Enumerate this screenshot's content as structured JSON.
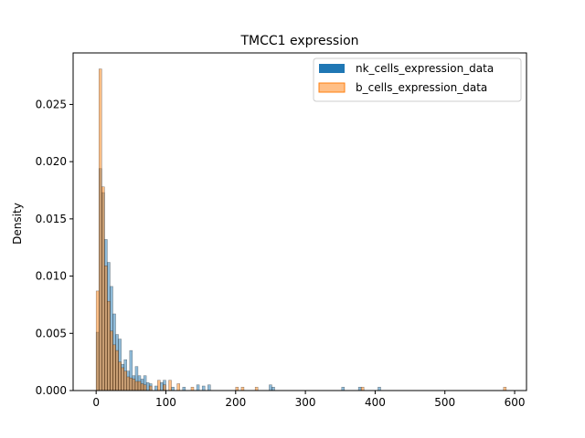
{
  "chart_data": {
    "type": "histogram",
    "title": "TMCC1 expression",
    "xlabel": "",
    "ylabel": "Density",
    "xlim": [
      -33,
      617
    ],
    "ylim": [
      0,
      0.0295
    ],
    "x_ticks": [
      0,
      100,
      200,
      300,
      400,
      500,
      600
    ],
    "y_ticks": [
      0.0,
      0.005,
      0.01,
      0.015,
      0.02,
      0.025
    ],
    "y_tick_labels": [
      "0.000",
      "0.005",
      "0.010",
      "0.015",
      "0.020",
      "0.025"
    ],
    "grid": false,
    "legend_position": "top-right",
    "series": [
      {
        "name": "nk_cells_expression_data",
        "color": "#1f77b4",
        "alpha": 0.5,
        "bins": [
          {
            "x": 2,
            "y": 0.0051
          },
          {
            "x": 6,
            "y": 0.0194
          },
          {
            "x": 10,
            "y": 0.0173
          },
          {
            "x": 14,
            "y": 0.0132
          },
          {
            "x": 18,
            "y": 0.0112
          },
          {
            "x": 22,
            "y": 0.0091
          },
          {
            "x": 26,
            "y": 0.0067
          },
          {
            "x": 30,
            "y": 0.0049
          },
          {
            "x": 34,
            "y": 0.0045
          },
          {
            "x": 38,
            "y": 0.0023
          },
          {
            "x": 42,
            "y": 0.0027
          },
          {
            "x": 46,
            "y": 0.0017
          },
          {
            "x": 50,
            "y": 0.0035
          },
          {
            "x": 54,
            "y": 0.0013
          },
          {
            "x": 58,
            "y": 0.0021
          },
          {
            "x": 62,
            "y": 0.0013
          },
          {
            "x": 66,
            "y": 0.001
          },
          {
            "x": 70,
            "y": 0.0013
          },
          {
            "x": 74,
            "y": 0.0007
          },
          {
            "x": 78,
            "y": 0.0006
          },
          {
            "x": 86,
            "y": 0.0004
          },
          {
            "x": 94,
            "y": 0.0007
          },
          {
            "x": 98,
            "y": 0.0009
          },
          {
            "x": 110,
            "y": 0.0003
          },
          {
            "x": 126,
            "y": 0.0003
          },
          {
            "x": 146,
            "y": 0.0005
          },
          {
            "x": 154,
            "y": 0.0004
          },
          {
            "x": 162,
            "y": 0.0005
          },
          {
            "x": 250,
            "y": 0.0005
          },
          {
            "x": 254,
            "y": 0.0003
          },
          {
            "x": 354,
            "y": 0.0003
          },
          {
            "x": 378,
            "y": 0.0003
          },
          {
            "x": 406,
            "y": 0.0003
          }
        ]
      },
      {
        "name": "b_cells_expression_data",
        "color": "#ff7f0e",
        "alpha": 0.5,
        "bins": [
          {
            "x": 2,
            "y": 0.0087
          },
          {
            "x": 6,
            "y": 0.0281
          },
          {
            "x": 10,
            "y": 0.0178
          },
          {
            "x": 14,
            "y": 0.0109
          },
          {
            "x": 18,
            "y": 0.0078
          },
          {
            "x": 22,
            "y": 0.0052
          },
          {
            "x": 26,
            "y": 0.004
          },
          {
            "x": 30,
            "y": 0.0035
          },
          {
            "x": 34,
            "y": 0.0025
          },
          {
            "x": 38,
            "y": 0.002
          },
          {
            "x": 42,
            "y": 0.0017
          },
          {
            "x": 46,
            "y": 0.0012
          },
          {
            "x": 50,
            "y": 0.0011
          },
          {
            "x": 54,
            "y": 0.001
          },
          {
            "x": 58,
            "y": 0.0008
          },
          {
            "x": 62,
            "y": 0.0008
          },
          {
            "x": 66,
            "y": 0.0006
          },
          {
            "x": 70,
            "y": 0.0005
          },
          {
            "x": 78,
            "y": 0.0004
          },
          {
            "x": 90,
            "y": 0.0009
          },
          {
            "x": 98,
            "y": 0.0005
          },
          {
            "x": 106,
            "y": 0.0009
          },
          {
            "x": 118,
            "y": 0.0006
          },
          {
            "x": 138,
            "y": 0.0003
          },
          {
            "x": 202,
            "y": 0.0003
          },
          {
            "x": 210,
            "y": 0.0003
          },
          {
            "x": 230,
            "y": 0.0003
          },
          {
            "x": 382,
            "y": 0.0003
          },
          {
            "x": 586,
            "y": 0.0003
          }
        ]
      }
    ]
  }
}
